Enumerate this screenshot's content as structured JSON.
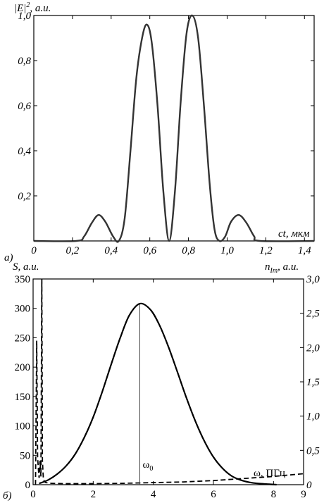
{
  "chart_data": [
    {
      "id": "top",
      "type": "line",
      "panel_label": "а)",
      "ylabel_html": "|E|",
      "ylabel_sup": "2",
      "ylabel_rest": ", а.u.",
      "xlabel": "ct, мкм",
      "xlim": [
        0,
        1.45
      ],
      "ylim": [
        0,
        1.0
      ],
      "xticks": [
        {
          "v": 0,
          "label": "0"
        },
        {
          "v": 0.2,
          "label": "0,2"
        },
        {
          "v": 0.4,
          "label": "0,4"
        },
        {
          "v": 0.6,
          "label": "0,6"
        },
        {
          "v": 0.8,
          "label": "0,8"
        },
        {
          "v": 1.0,
          "label": "1,0"
        },
        {
          "v": 1.2,
          "label": "1,2"
        },
        {
          "v": 1.4,
          "label": "1,4"
        }
      ],
      "yticks": [
        {
          "v": 0.2,
          "label": "0,2"
        },
        {
          "v": 0.4,
          "label": "0,4"
        },
        {
          "v": 0.6,
          "label": "0,6"
        },
        {
          "v": 0.8,
          "label": "0,8"
        },
        {
          "v": 1.0,
          "label": "1,0"
        }
      ],
      "series": [
        {
          "style": "solid",
          "color": "#333333",
          "x": [
            0,
            0.22,
            0.26,
            0.3,
            0.335,
            0.37,
            0.41,
            0.44,
            0.47,
            0.5,
            0.53,
            0.56,
            0.585,
            0.61,
            0.64,
            0.67,
            0.7,
            0.73,
            0.76,
            0.79,
            0.82,
            0.85,
            0.88,
            0.91,
            0.935,
            0.96,
            0.99,
            1.02,
            1.06,
            1.1,
            1.14,
            1.17,
            1.45
          ],
          "y": [
            0,
            0,
            0.02,
            0.08,
            0.115,
            0.085,
            0.02,
            0.0,
            0.1,
            0.4,
            0.72,
            0.9,
            0.96,
            0.88,
            0.6,
            0.22,
            0.0,
            0.22,
            0.62,
            0.92,
            1.0,
            0.9,
            0.6,
            0.25,
            0.05,
            0.0,
            0.02,
            0.085,
            0.115,
            0.08,
            0.02,
            0,
            0
          ]
        }
      ]
    },
    {
      "id": "bottom",
      "type": "line",
      "panel_label": "б)",
      "ylabel": "S, a.u.",
      "y2label_html": "n",
      "y2label_sub": "Im",
      "y2label_rest": ", a.u.",
      "xlabel": "ω, ПГц",
      "annotation": {
        "text": "ω",
        "sub": "0",
        "x": 3.55
      },
      "xlim": [
        0,
        9
      ],
      "ylim": [
        0,
        350
      ],
      "y2lim": [
        0,
        3.0
      ],
      "xticks": [
        {
          "v": 0,
          "label": "0"
        },
        {
          "v": 2,
          "label": "2"
        },
        {
          "v": 4,
          "label": "4"
        },
        {
          "v": 6,
          "label": "6"
        },
        {
          "v": 8,
          "label": "8"
        },
        {
          "v": 9,
          "label": "9"
        }
      ],
      "yticks": [
        {
          "v": 0,
          "label": "0"
        },
        {
          "v": 50,
          "label": "50"
        },
        {
          "v": 100,
          "label": "100"
        },
        {
          "v": 150,
          "label": "150"
        },
        {
          "v": 200,
          "label": "200"
        },
        {
          "v": 250,
          "label": "250"
        },
        {
          "v": 300,
          "label": "300"
        },
        {
          "v": 350,
          "label": "350"
        }
      ],
      "y2ticks": [
        {
          "v": 0,
          "label": "0"
        },
        {
          "v": 0.5,
          "label": "0,5"
        },
        {
          "v": 1.0,
          "label": "1,0"
        },
        {
          "v": 1.5,
          "label": "1,5"
        },
        {
          "v": 2.0,
          "label": "2,0"
        },
        {
          "v": 2.5,
          "label": "2,5"
        },
        {
          "v": 3.0,
          "label": "3,0"
        }
      ],
      "series": [
        {
          "style": "solid",
          "color": "#000000",
          "axis": "left",
          "x": [
            0.2,
            0.5,
            0.8,
            1.1,
            1.4,
            1.7,
            2.0,
            2.3,
            2.6,
            2.9,
            3.2,
            3.55,
            3.9,
            4.2,
            4.5,
            4.8,
            5.1,
            5.4,
            5.7,
            6.0,
            6.3,
            6.6,
            6.9,
            7.2,
            7.5,
            7.8,
            8.1
          ],
          "y": [
            2,
            8,
            18,
            32,
            52,
            80,
            115,
            158,
            205,
            250,
            288,
            308,
            298,
            272,
            235,
            192,
            148,
            108,
            74,
            47,
            28,
            15,
            8,
            4,
            2,
            1,
            0
          ]
        },
        {
          "style": "dashed",
          "color": "#000000",
          "axis": "right",
          "x": [
            0.08,
            0.12,
            0.15,
            0.18,
            0.2,
            0.23,
            0.26,
            0.29,
            0.31,
            0.34,
            0.37,
            0.42,
            0.6,
            1.0,
            2.0,
            3.0,
            4.0,
            5.0,
            6.0,
            7.0,
            8.0,
            9.0
          ],
          "y": [
            0.0,
            2.1,
            0.4,
            0.2,
            0.1,
            0.35,
            0.12,
            3.05,
            0.35,
            0.1,
            0.05,
            0.03,
            0.02,
            0.015,
            0.015,
            0.02,
            0.03,
            0.04,
            0.06,
            0.09,
            0.12,
            0.16
          ]
        }
      ]
    }
  ]
}
